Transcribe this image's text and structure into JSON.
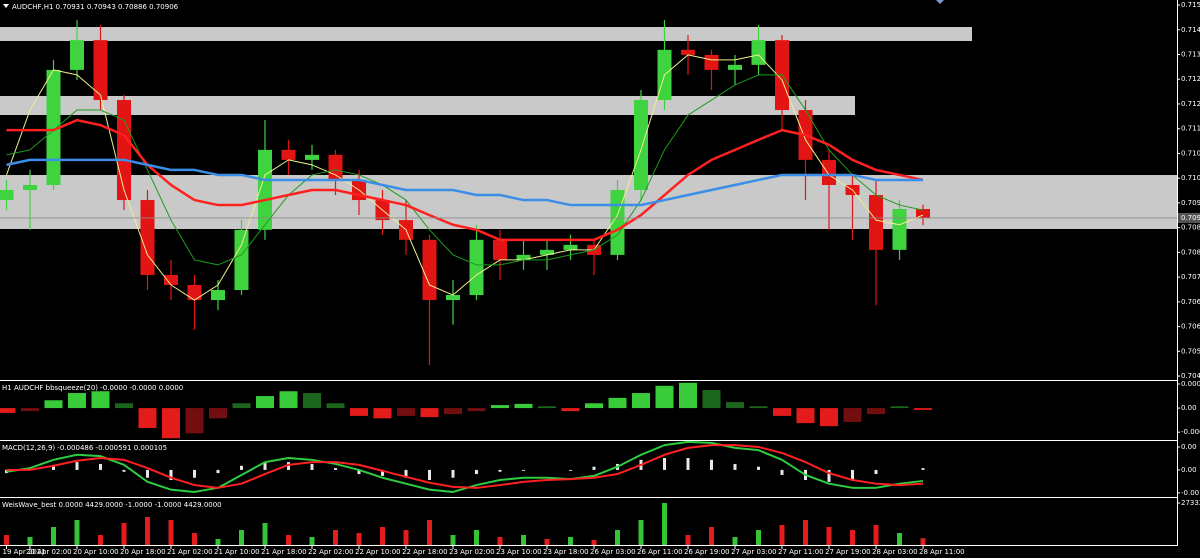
{
  "chart_data": [
    {
      "type": "candlestick",
      "title": "AUDCHF,H1  0.70931 0.70943 0.70886 0.70906",
      "open": [
        0.70956,
        0.70984,
        0.70998,
        0.71319,
        0.71402,
        0.71235,
        0.70956,
        0.70747,
        0.70719,
        0.70677,
        0.70705,
        0.70873,
        0.71096,
        0.71068,
        0.71082,
        0.71012,
        0.70956,
        0.709,
        0.70845,
        0.70677,
        0.70691,
        0.70845,
        0.70789,
        0.70803,
        0.70817,
        0.70831,
        0.70803,
        0.70984,
        0.71235,
        0.71375,
        0.71361,
        0.71319,
        0.71333,
        0.71402,
        0.71207,
        0.71068,
        0.70998,
        0.7097,
        0.70817,
        0.70931
      ],
      "high": [
        0.71012,
        0.7104,
        0.71347,
        0.71458,
        0.71444,
        0.71249,
        0.70984,
        0.70789,
        0.70747,
        0.70733,
        0.709,
        0.71179,
        0.71124,
        0.7111,
        0.71096,
        0.7104,
        0.70984,
        0.70956,
        0.70859,
        0.70733,
        0.70887,
        0.70873,
        0.70845,
        0.70845,
        0.70859,
        0.70845,
        0.71012,
        0.71263,
        0.71458,
        0.71416,
        0.71375,
        0.71361,
        0.71444,
        0.71416,
        0.71235,
        0.71096,
        0.71026,
        0.71012,
        0.70956,
        0.70943
      ],
      "low": [
        0.70928,
        0.70873,
        0.70984,
        0.71291,
        0.71207,
        0.70928,
        0.70705,
        0.70677,
        0.70594,
        0.70649,
        0.70691,
        0.70845,
        0.71026,
        0.7104,
        0.7097,
        0.70914,
        0.70859,
        0.70803,
        0.70496,
        0.70608,
        0.70677,
        0.70733,
        0.70761,
        0.70761,
        0.70789,
        0.70747,
        0.70789,
        0.70956,
        0.71207,
        0.71305,
        0.71263,
        0.71277,
        0.71305,
        0.71151,
        0.70956,
        0.70873,
        0.70845,
        0.70663,
        0.70789,
        0.70886
      ],
      "close": [
        0.70984,
        0.70998,
        0.71319,
        0.71402,
        0.71235,
        0.70956,
        0.70747,
        0.70719,
        0.70677,
        0.70705,
        0.70873,
        0.71096,
        0.71068,
        0.71082,
        0.71012,
        0.70956,
        0.709,
        0.70845,
        0.70677,
        0.70691,
        0.70845,
        0.70789,
        0.70803,
        0.70817,
        0.70831,
        0.70803,
        0.70984,
        0.71235,
        0.71375,
        0.71361,
        0.71319,
        0.71333,
        0.71402,
        0.71207,
        0.71068,
        0.70998,
        0.7097,
        0.70817,
        0.70931,
        0.70906
      ],
      "up_color": "#3fd43f",
      "down_color": "#e31414",
      "series": [
        {
          "color": "#f0f08c",
          "values": [
            0.71026,
            0.71207,
            0.71319,
            0.71305,
            0.71249,
            0.70984,
            0.70803,
            0.70719,
            0.70677,
            0.70719,
            0.70831,
            0.71026,
            0.71068,
            0.71054,
            0.71026,
            0.70984,
            0.70928,
            0.70873,
            0.70719,
            0.70691,
            0.70747,
            0.70789,
            0.70789,
            0.70803,
            0.70817,
            0.70817,
            0.70914,
            0.71096,
            0.71305,
            0.71361,
            0.71347,
            0.71347,
            0.71361,
            0.71291,
            0.71124,
            0.71026,
            0.70984,
            0.709,
            0.70887,
            0.70914
          ]
        },
        {
          "color": "#1e9b1e",
          "values": [
            0.71082,
            0.71096,
            0.71151,
            0.71207,
            0.71207,
            0.71179,
            0.7104,
            0.709,
            0.70789,
            0.70775,
            0.70803,
            0.70887,
            0.7097,
            0.71026,
            0.7104,
            0.71026,
            0.70998,
            0.70956,
            0.70873,
            0.70803,
            0.70775,
            0.70775,
            0.70789,
            0.70789,
            0.70803,
            0.70817,
            0.70859,
            0.70956,
            0.71096,
            0.71193,
            0.71235,
            0.71277,
            0.71305,
            0.71305,
            0.71207,
            0.71096,
            0.71026,
            0.7097,
            0.70942,
            0.70928
          ]
        },
        {
          "color": "#ff2020",
          "values": [
            0.71151,
            0.71151,
            0.71151,
            0.71179,
            0.71165,
            0.71137,
            0.71054,
            0.70998,
            0.70956,
            0.70942,
            0.70942,
            0.70956,
            0.7097,
            0.70984,
            0.70984,
            0.7097,
            0.70956,
            0.70942,
            0.70914,
            0.70887,
            0.70873,
            0.70845,
            0.70845,
            0.70845,
            0.70845,
            0.70845,
            0.70873,
            0.70914,
            0.7097,
            0.71026,
            0.71068,
            0.71096,
            0.71124,
            0.71151,
            0.71137,
            0.7111,
            0.71068,
            0.7104,
            0.71026,
            0.71012
          ]
        },
        {
          "color": "#3a8ee6",
          "values": [
            0.71054,
            0.71068,
            0.71068,
            0.71068,
            0.71068,
            0.71068,
            0.71054,
            0.7104,
            0.7104,
            0.71026,
            0.71026,
            0.71012,
            0.71012,
            0.71012,
            0.71012,
            0.71012,
            0.70998,
            0.70984,
            0.70984,
            0.70984,
            0.7097,
            0.7097,
            0.70956,
            0.70956,
            0.70942,
            0.70942,
            0.70942,
            0.70942,
            0.70956,
            0.7097,
            0.70984,
            0.70998,
            0.71012,
            0.71026,
            0.71026,
            0.71026,
            0.71026,
            0.71012,
            0.71012,
            0.71012
          ]
        }
      ],
      "ylim": [
        0.70454,
        0.71514
      ],
      "yticks": [
        {
          "value": 0.715,
          "label": "0.715"
        },
        {
          "value": 0.71431,
          "label": "0.714"
        },
        {
          "value": 0.71362,
          "label": "0.713"
        },
        {
          "value": 0.71293,
          "label": "0.712"
        },
        {
          "value": 0.71224,
          "label": "0.712"
        },
        {
          "value": 0.71155,
          "label": "0.711"
        },
        {
          "value": 0.71086,
          "label": "0.710"
        },
        {
          "value": 0.71017,
          "label": "0.710"
        },
        {
          "value": 0.70948,
          "label": "0.709"
        },
        {
          "value": 0.70879,
          "label": "0.708"
        },
        {
          "value": 0.7081,
          "label": "0.708"
        },
        {
          "value": 0.70741,
          "label": "0.707"
        },
        {
          "value": 0.70672,
          "label": "0.706"
        },
        {
          "value": 0.70603,
          "label": "0.706"
        },
        {
          "value": 0.70534,
          "label": "0.705"
        },
        {
          "value": 0.70465,
          "label": "0.704"
        }
      ],
      "price_line": {
        "value": 0.70906,
        "label": "0.709"
      },
      "xticks": [
        {
          "value": 0,
          "label": "19 Apr 2021"
        },
        {
          "value": 1,
          "label": "20 Apr 02:00"
        },
        {
          "value": 3,
          "label": "20 Apr 10:00"
        },
        {
          "value": 5,
          "label": "20 Apr 18:00"
        },
        {
          "value": 7,
          "label": "21 Apr 02:00"
        },
        {
          "value": 9,
          "label": "21 Apr 10:00"
        },
        {
          "value": 11,
          "label": "21 Apr 18:00"
        },
        {
          "value": 13,
          "label": "22 Apr 02:00"
        },
        {
          "value": 15,
          "label": "22 Apr 10:00"
        },
        {
          "value": 17,
          "label": "22 Apr 18:00"
        },
        {
          "value": 19,
          "label": "23 Apr 02:00"
        },
        {
          "value": 21,
          "label": "23 Apr 10:00"
        },
        {
          "value": 23,
          "label": "23 Apr 18:00"
        },
        {
          "value": 25,
          "label": "26 Apr 03:00"
        },
        {
          "value": 27,
          "label": "26 Apr 11:00"
        },
        {
          "value": 29,
          "label": "26 Apr 19:00"
        },
        {
          "value": 31,
          "label": "27 Apr 03:00"
        },
        {
          "value": 33,
          "label": "27 Apr 11:00"
        },
        {
          "value": 35,
          "label": "27 Apr 19:00"
        },
        {
          "value": 37,
          "label": "28 Apr 03:00"
        },
        {
          "value": 39,
          "label": "28 Apr 11:00"
        }
      ]
    },
    {
      "type": "bar",
      "title": "H1 AUDCHF bbsqueeze(20) -0.0000 -0.0000 0.0000",
      "values": [
        -8e-05,
        -5e-05,
        0.00013,
        0.00025,
        0.00028,
        8e-05,
        -0.00033,
        -0.0005,
        -0.00042,
        -0.00017,
        8e-05,
        0.0002,
        0.00028,
        0.00025,
        8e-05,
        -0.00013,
        -0.00017,
        -0.00013,
        -0.00015,
        -0.0001,
        -5e-05,
        5e-05,
        7e-05,
        3e-05,
        -5e-05,
        8e-05,
        0.00017,
        0.00025,
        0.00037,
        0.00042,
        0.0003,
        0.0001,
        3e-05,
        -0.00013,
        -0.00025,
        -0.0003,
        -0.00023,
        -0.0001,
        3e-05,
        -3e-05
      ],
      "color": "#3acb3a",
      "color_neg": "#e31b1b",
      "ylim": [
        -0.00053,
        0.00045
      ],
      "yticks": [
        {
          "value": 0.0004,
          "label": "0.0004"
        },
        {
          "value": 0,
          "label": "0.00"
        },
        {
          "value": -0.0004,
          "label": "-0.000"
        }
      ]
    },
    {
      "type": "bar",
      "title": "MACD(12,26,9) -0.000486 -0.000591 0.000105",
      "values": [
        -7e-05,
        0,
        0.00011,
        0.00017,
        0.00013,
        -4e-05,
        -0.00017,
        -0.00022,
        -0.00017,
        -7e-05,
        9e-05,
        0.00017,
        0.00017,
        0.00013,
        4e-05,
        -9e-05,
        -0.00013,
        -0.00017,
        -0.00022,
        -0.00017,
        -9e-05,
        -4e-05,
        -2e-05,
        0,
        -2e-05,
        7e-05,
        0.00013,
        0.00022,
        0.00026,
        0.00026,
        0.00022,
        0.00013,
        7e-05,
        -0.00011,
        -0.00022,
        -0.00026,
        -0.00022,
        -9e-05,
        0,
        4e-05
      ],
      "color": "#e8e8e8",
      "series": [
        {
          "color": "#2ecc40",
          "values": [
            -4e-05,
            4e-05,
            0.00022,
            0.00033,
            0.0003,
            0.00011,
            -0.00026,
            -0.00043,
            -0.00048,
            -0.00039,
            -0.00011,
            0.00017,
            0.00026,
            0.00022,
            0.00013,
            0,
            -0.00017,
            -0.0003,
            -0.00043,
            -0.00048,
            -0.00033,
            -0.00022,
            -0.00017,
            -0.00017,
            -0.0002,
            -0.00013,
            7e-05,
            0.00033,
            0.00054,
            0.00061,
            0.00059,
            0.00048,
            0.00043,
            0.00022,
            -0.00011,
            -0.0003,
            -0.00039,
            -0.00039,
            -0.0003,
            -0.00024
          ]
        },
        {
          "color": "#ff2020",
          "values": [
            0,
            0,
            9e-05,
            0.0002,
            0.00026,
            0.00022,
            4e-05,
            -0.00017,
            -0.00033,
            -0.00039,
            -0.0003,
            -9e-05,
            0.00011,
            0.00017,
            0.00017,
            0.00011,
            -2e-05,
            -0.00015,
            -0.00028,
            -0.00037,
            -0.00039,
            -0.00033,
            -0.00026,
            -0.00022,
            -0.0002,
            -0.00017,
            -9e-05,
            0.00011,
            0.00033,
            0.00048,
            0.00054,
            0.00054,
            0.0005,
            0.00037,
            0.00017,
            -7e-05,
            -0.00022,
            -0.0003,
            -0.00033,
            -0.0003
          ]
        }
      ],
      "ylim": [
        -0.00059,
        0.00063
      ],
      "yticks": [
        {
          "value": 0.0005,
          "label": "0.00"
        },
        {
          "value": 0,
          "label": "0.00"
        },
        {
          "value": -0.0005,
          "label": "-0.001"
        }
      ]
    },
    {
      "type": "bar",
      "title": "WeisWave_best 0.0000 4429.0000 -1.0000 -1.0000 4429.0000",
      "values": [
        6500,
        5200,
        11700,
        16250,
        6500,
        14300,
        18200,
        16250,
        7800,
        3900,
        9750,
        14300,
        6500,
        5200,
        9750,
        7800,
        11700,
        9750,
        16250,
        6500,
        9750,
        5200,
        6500,
        3900,
        5200,
        3250,
        9750,
        16250,
        27332,
        6500,
        11700,
        5200,
        9750,
        13000,
        16250,
        11700,
        9750,
        13000,
        7800,
        4429
      ],
      "colors": [
        "#e51c1c",
        "#35c435",
        "#35c435",
        "#35c435",
        "#e51c1c",
        "#e51c1c",
        "#e51c1c",
        "#e51c1c",
        "#e51c1c",
        "#35c435",
        "#35c435",
        "#35c435",
        "#e51c1c",
        "#35c435",
        "#e51c1c",
        "#e51c1c",
        "#e51c1c",
        "#e51c1c",
        "#e51c1c",
        "#35c435",
        "#35c435",
        "#e51c1c",
        "#35c435",
        "#e51c1c",
        "#35c435",
        "#e51c1c",
        "#35c435",
        "#35c435",
        "#35c435",
        "#e51c1c",
        "#e51c1c",
        "#35c435",
        "#35c435",
        "#e51c1c",
        "#e51c1c",
        "#e51c1c",
        "#e51c1c",
        "#e51c1c",
        "#35c435",
        "#e51c1c"
      ],
      "ylim": [
        0,
        30586
      ],
      "yticks": [
        27332
      ]
    }
  ]
}
